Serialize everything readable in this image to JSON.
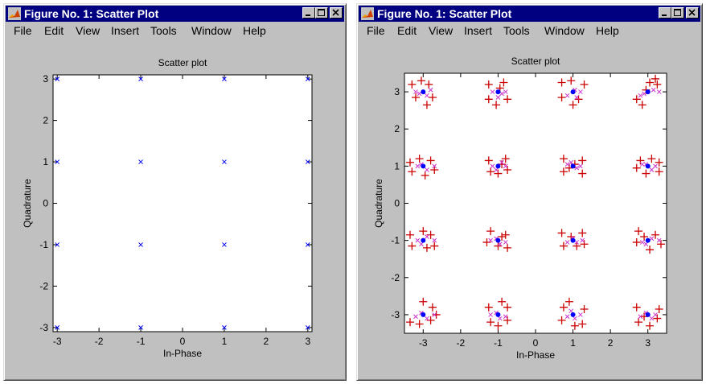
{
  "windows": [
    {
      "title": "Figure No. 1: Scatter Plot",
      "menu": [
        "File",
        "Edit",
        "View",
        "Insert",
        "Tools",
        "Window",
        "Help"
      ],
      "chart_data": {
        "type": "scatter",
        "title": "Scatter plot",
        "xlabel": "In-Phase",
        "ylabel": "Quadrature",
        "xlim": [
          -3.1,
          3.1
        ],
        "ylim": [
          -3.1,
          3.1
        ],
        "xticks": [
          -3,
          -2,
          -1,
          0,
          1,
          2,
          3
        ],
        "yticks": [
          -3,
          -2,
          -1,
          0,
          1,
          2,
          3
        ],
        "series": [
          {
            "marker": "x",
            "color": "#0000ff",
            "points": [
              [
                -3,
                3
              ],
              [
                -1,
                3
              ],
              [
                1,
                3
              ],
              [
                3,
                3
              ],
              [
                -3,
                1
              ],
              [
                -1,
                1
              ],
              [
                1,
                1
              ],
              [
                3,
                1
              ],
              [
                -3,
                -1
              ],
              [
                -1,
                -1
              ],
              [
                1,
                -1
              ],
              [
                3,
                -1
              ],
              [
                -3,
                -3
              ],
              [
                -1,
                -3
              ],
              [
                1,
                -3
              ],
              [
                3,
                -3
              ]
            ]
          }
        ]
      }
    },
    {
      "title": "Figure No. 1: Scatter Plot",
      "menu": [
        "File",
        "Edit",
        "View",
        "Insert",
        "Tools",
        "Window",
        "Help"
      ],
      "chart_data": {
        "type": "scatter",
        "title": "Scatter plot",
        "xlabel": "In-Phase",
        "ylabel": "Quadrature",
        "xlim": [
          -3.5,
          3.5
        ],
        "ylim": [
          -3.5,
          3.5
        ],
        "xticks": [
          -3,
          -2,
          -1,
          0,
          1,
          2,
          3
        ],
        "yticks": [
          -3,
          -2,
          -1,
          0,
          1,
          2,
          3
        ],
        "series": [
          {
            "marker": "+",
            "color": "#cc0000",
            "points": [
              [
                -3.3,
                3.2
              ],
              [
                -3.2,
                2.85
              ],
              [
                -2.85,
                3.2
              ],
              [
                -2.75,
                2.85
              ],
              [
                -2.9,
                2.65
              ],
              [
                -3.05,
                3.3
              ],
              [
                -1.25,
                3.2
              ],
              [
                -1.25,
                2.8
              ],
              [
                -0.85,
                3.25
              ],
              [
                -0.75,
                2.8
              ],
              [
                -1.05,
                2.65
              ],
              [
                -0.95,
                3.1
              ],
              [
                0.7,
                3.25
              ],
              [
                0.7,
                2.85
              ],
              [
                1.3,
                3.2
              ],
              [
                1.15,
                2.8
              ],
              [
                1.0,
                2.65
              ],
              [
                0.95,
                3.3
              ],
              [
                2.7,
                2.8
              ],
              [
                2.85,
                2.65
              ],
              [
                3.25,
                3.2
              ],
              [
                3.2,
                3.35
              ],
              [
                3.05,
                3.25
              ],
              [
                2.95,
                3.05
              ],
              [
                -3.35,
                1.1
              ],
              [
                -3.3,
                0.85
              ],
              [
                -2.8,
                1.15
              ],
              [
                -2.7,
                0.9
              ],
              [
                -3.1,
                1.2
              ],
              [
                -2.95,
                0.75
              ],
              [
                -1.25,
                1.15
              ],
              [
                -1.2,
                0.85
              ],
              [
                -0.8,
                1.2
              ],
              [
                -0.75,
                0.9
              ],
              [
                -1.0,
                0.8
              ],
              [
                -0.9,
                1.05
              ],
              [
                0.75,
                1.2
              ],
              [
                0.75,
                0.85
              ],
              [
                1.25,
                1.15
              ],
              [
                1.25,
                0.8
              ],
              [
                1.05,
                1.05
              ],
              [
                0.9,
                0.95
              ],
              [
                2.7,
                0.95
              ],
              [
                2.8,
                1.15
              ],
              [
                3.3,
                1.1
              ],
              [
                3.3,
                0.85
              ],
              [
                3.1,
                1.2
              ],
              [
                2.95,
                0.8
              ],
              [
                -3.35,
                -0.85
              ],
              [
                -3.3,
                -1.15
              ],
              [
                -2.8,
                -0.85
              ],
              [
                -2.7,
                -1.15
              ],
              [
                -3.0,
                -0.75
              ],
              [
                -2.9,
                -1.2
              ],
              [
                -1.3,
                -1.05
              ],
              [
                -1.2,
                -0.75
              ],
              [
                -0.75,
                -1.2
              ],
              [
                -0.8,
                -0.85
              ],
              [
                -1.0,
                -1.15
              ],
              [
                -0.9,
                -0.9
              ],
              [
                0.7,
                -0.8
              ],
              [
                0.75,
                -1.15
              ],
              [
                1.3,
                -1.1
              ],
              [
                1.25,
                -0.8
              ],
              [
                1.1,
                -1.15
              ],
              [
                0.95,
                -0.9
              ],
              [
                2.75,
                -0.75
              ],
              [
                2.7,
                -1.05
              ],
              [
                3.2,
                -0.85
              ],
              [
                3.35,
                -1.1
              ],
              [
                3.05,
                -1.25
              ],
              [
                2.9,
                -0.9
              ],
              [
                -3.35,
                -3.2
              ],
              [
                -3.1,
                -3.25
              ],
              [
                -2.75,
                -2.8
              ],
              [
                -2.8,
                -3.15
              ],
              [
                -3.0,
                -2.65
              ],
              [
                -2.65,
                -3.0
              ],
              [
                -1.25,
                -2.8
              ],
              [
                -1.2,
                -3.2
              ],
              [
                -0.75,
                -2.8
              ],
              [
                -0.75,
                -3.15
              ],
              [
                -1.0,
                -3.3
              ],
              [
                -0.9,
                -2.65
              ],
              [
                0.75,
                -2.8
              ],
              [
                0.7,
                -3.15
              ],
              [
                1.25,
                -3.25
              ],
              [
                1.3,
                -2.85
              ],
              [
                1.05,
                -3.3
              ],
              [
                0.9,
                -2.65
              ],
              [
                2.7,
                -2.8
              ],
              [
                2.75,
                -3.2
              ],
              [
                3.25,
                -3.1
              ],
              [
                3.3,
                -2.85
              ],
              [
                3.05,
                -3.3
              ],
              [
                2.9,
                -3.05
              ]
            ]
          },
          {
            "marker": "x",
            "color": "#cc33cc",
            "points": [
              [
                -3.2,
                3.0
              ],
              [
                -2.8,
                3.05
              ],
              [
                -2.9,
                2.9
              ],
              [
                -3.1,
                2.95
              ],
              [
                -0.8,
                3.0
              ],
              [
                -1.15,
                3.0
              ],
              [
                -1.0,
                2.85
              ],
              [
                -0.9,
                2.95
              ],
              [
                1.2,
                3.0
              ],
              [
                0.85,
                2.9
              ],
              [
                1.1,
                2.85
              ],
              [
                1.05,
                3.05
              ],
              [
                3.3,
                3.0
              ],
              [
                2.8,
                2.9
              ],
              [
                3.15,
                3.05
              ],
              [
                2.9,
                2.95
              ],
              [
                -2.7,
                1.0
              ],
              [
                -3.15,
                1.0
              ],
              [
                -2.9,
                0.9
              ],
              [
                -3.05,
                1.05
              ],
              [
                -0.8,
                1.0
              ],
              [
                -1.15,
                1.0
              ],
              [
                -0.9,
                1.1
              ],
              [
                -1.05,
                0.9
              ],
              [
                1.2,
                1.0
              ],
              [
                0.85,
                1.05
              ],
              [
                1.1,
                0.95
              ],
              [
                0.95,
                1.1
              ],
              [
                3.2,
                1.0
              ],
              [
                2.85,
                1.05
              ],
              [
                3.1,
                0.9
              ],
              [
                2.95,
                1.05
              ],
              [
                -2.7,
                -1.0
              ],
              [
                -3.15,
                -1.0
              ],
              [
                -2.9,
                -0.9
              ],
              [
                -3.05,
                -1.1
              ],
              [
                -1.2,
                -1.0
              ],
              [
                -0.8,
                -1.05
              ],
              [
                -0.95,
                -1.1
              ],
              [
                -1.05,
                -0.95
              ],
              [
                1.25,
                -1.0
              ],
              [
                0.85,
                -1.05
              ],
              [
                1.1,
                -1.05
              ],
              [
                1.0,
                -0.95
              ],
              [
                3.3,
                -1.0
              ],
              [
                2.85,
                -1.05
              ],
              [
                3.1,
                -0.95
              ],
              [
                2.95,
                -1.1
              ],
              [
                -2.7,
                -3.0
              ],
              [
                -3.2,
                -3.05
              ],
              [
                -2.9,
                -3.1
              ],
              [
                -3.05,
                -2.95
              ],
              [
                -0.8,
                -3.05
              ],
              [
                -1.2,
                -3.0
              ],
              [
                -0.95,
                -3.1
              ],
              [
                -1.05,
                -2.95
              ],
              [
                1.2,
                -3.0
              ],
              [
                0.85,
                -3.05
              ],
              [
                1.05,
                -3.1
              ],
              [
                0.95,
                -2.9
              ],
              [
                3.2,
                -3.0
              ],
              [
                2.8,
                -3.05
              ],
              [
                3.1,
                -3.1
              ],
              [
                2.95,
                -2.95
              ]
            ]
          },
          {
            "marker": "dot",
            "color": "#0000ff",
            "points": [
              [
                -3,
                3
              ],
              [
                -1,
                3
              ],
              [
                1,
                3
              ],
              [
                3,
                3
              ],
              [
                -3,
                1
              ],
              [
                -1,
                1
              ],
              [
                1,
                1
              ],
              [
                3,
                1
              ],
              [
                -3,
                -1
              ],
              [
                -1,
                -1
              ],
              [
                1,
                -1
              ],
              [
                3,
                -1
              ],
              [
                -3,
                -3
              ],
              [
                -1,
                -3
              ],
              [
                1,
                -3
              ],
              [
                3,
                -3
              ]
            ]
          }
        ]
      }
    }
  ]
}
